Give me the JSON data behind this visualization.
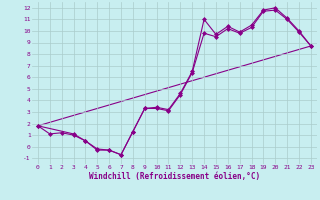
{
  "xlabel": "Windchill (Refroidissement éolien,°C)",
  "background_color": "#c8eef0",
  "line_color": "#880088",
  "marker": "D",
  "xlim": [
    -0.5,
    23.5
  ],
  "ylim": [
    -1.5,
    12.5
  ],
  "xticks": [
    0,
    1,
    2,
    3,
    4,
    5,
    6,
    7,
    8,
    9,
    10,
    11,
    12,
    13,
    14,
    15,
    16,
    17,
    18,
    19,
    20,
    21,
    22,
    23
  ],
  "yticks": [
    -1,
    0,
    1,
    2,
    3,
    4,
    5,
    6,
    7,
    8,
    9,
    10,
    11,
    12
  ],
  "series1_x": [
    0,
    1,
    2,
    3,
    4,
    5,
    6,
    7,
    8,
    9,
    10,
    11,
    12,
    13,
    14,
    15,
    16,
    17,
    18,
    19,
    20,
    21,
    22,
    23
  ],
  "series1_y": [
    1.8,
    1.1,
    1.2,
    1.0,
    0.5,
    -0.3,
    -0.3,
    -0.7,
    1.3,
    3.3,
    3.4,
    3.2,
    4.6,
    6.5,
    11.0,
    9.7,
    10.4,
    9.9,
    10.5,
    11.8,
    12.0,
    11.1,
    10.0,
    8.7
  ],
  "series2_x": [
    0,
    3,
    4,
    5,
    6,
    7,
    8,
    9,
    10,
    11,
    12,
    13,
    14,
    15,
    16,
    17,
    18,
    19,
    20,
    21,
    22,
    23
  ],
  "series2_y": [
    1.8,
    1.1,
    0.5,
    -0.2,
    -0.3,
    -0.7,
    1.3,
    3.3,
    3.3,
    3.1,
    4.5,
    6.4,
    9.8,
    9.5,
    10.2,
    9.8,
    10.3,
    11.7,
    11.8,
    11.0,
    9.9,
    8.7
  ],
  "series3_x": [
    0,
    23
  ],
  "series3_y": [
    1.8,
    8.7
  ],
  "grid_color": "#aacccc",
  "xlabel_fontsize": 5.5,
  "tick_fontsize": 4.5
}
